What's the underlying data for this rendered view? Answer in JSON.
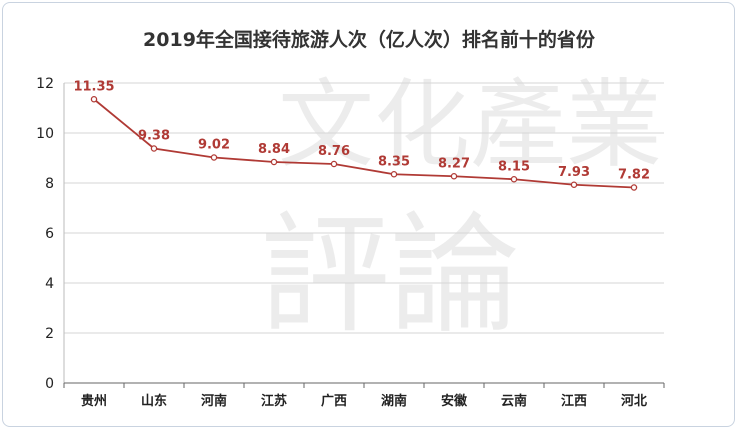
{
  "chart_data": {
    "type": "line",
    "title": "2019年全国接待旅游人次（亿人次）排名前十的省份",
    "categories": [
      "贵州",
      "山东",
      "河南",
      "江苏",
      "广西",
      "湖南",
      "安徽",
      "云南",
      "江西",
      "河北"
    ],
    "series": [
      {
        "values": [
          11.35,
          9.38,
          9.02,
          8.84,
          8.76,
          8.35,
          8.27,
          8.15,
          7.93,
          7.82
        ]
      }
    ],
    "xlabel": "",
    "ylabel": "",
    "ylim": [
      0,
      12
    ],
    "yticks": [
      0,
      2,
      4,
      6,
      8,
      10,
      12
    ],
    "grid": "horizontal",
    "line_color": "#b03a35"
  },
  "watermark": {
    "lines": [
      "文化產業",
      "評論"
    ]
  }
}
